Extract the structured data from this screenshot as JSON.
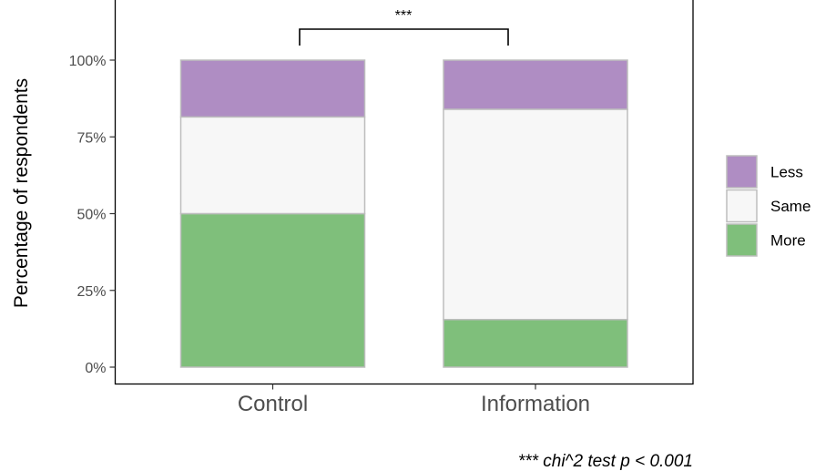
{
  "chart_data": {
    "type": "bar",
    "stacked": true,
    "categories": [
      "Control",
      "Information"
    ],
    "series": [
      {
        "name": "More",
        "values": [
          50,
          15.5
        ],
        "color": "#7fbf7b"
      },
      {
        "name": "Same",
        "values": [
          31.5,
          68.5
        ],
        "color": "#f7f7f7"
      },
      {
        "name": "Less",
        "values": [
          18.5,
          16
        ],
        "color": "#af8dc3"
      }
    ],
    "ylabel": "Percentage of respondents",
    "xlabel": "",
    "ylim": [
      -5.5,
      100
    ],
    "yticks": [
      0,
      25,
      50,
      75,
      100
    ],
    "ytick_labels": [
      "0%",
      "25%",
      "50%",
      "75%",
      "100%"
    ],
    "legend": {
      "placement": "right",
      "items": [
        "Less",
        "Same",
        "More"
      ]
    },
    "significance": {
      "label": "***",
      "between": [
        "Control",
        "Information"
      ]
    },
    "caption": "*** chi^2 test p < 0.001",
    "grid": false
  }
}
